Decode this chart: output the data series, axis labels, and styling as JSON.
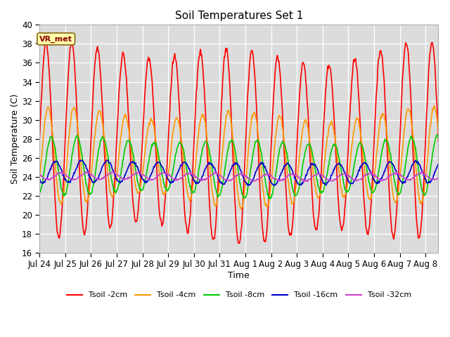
{
  "title": "Soil Temperatures Set 1",
  "xlabel": "Time",
  "ylabel": "Soil Temperature (C)",
  "ylim": [
    16,
    40
  ],
  "yticks": [
    16,
    18,
    20,
    22,
    24,
    26,
    28,
    30,
    32,
    34,
    36,
    38,
    40
  ],
  "bg_color": "#dcdcdc",
  "fig_color": "#ffffff",
  "annotation_text": "VR_met",
  "series": [
    {
      "label": "Tsoil -2cm",
      "color": "#ff0000",
      "lw": 1.2
    },
    {
      "label": "Tsoil -4cm",
      "color": "#ff9900",
      "lw": 1.2
    },
    {
      "label": "Tsoil -8cm",
      "color": "#00cc00",
      "lw": 1.2
    },
    {
      "label": "Tsoil -16cm",
      "color": "#0000cc",
      "lw": 1.2
    },
    {
      "label": "Tsoil -32cm",
      "color": "#cc44cc",
      "lw": 1.2
    }
  ],
  "xtick_labels": [
    "Jul 24",
    "Jul 25",
    "Jul 26",
    "Jul 27",
    "Jul 28",
    "Jul 29",
    "Jul 30",
    "Jul 31",
    "Aug 1",
    "Aug 2",
    "Aug 3",
    "Aug 4",
    "Aug 5",
    "Aug 6",
    "Aug 7",
    "Aug 8"
  ],
  "n_days": 15.5,
  "samples_per_day": 48
}
